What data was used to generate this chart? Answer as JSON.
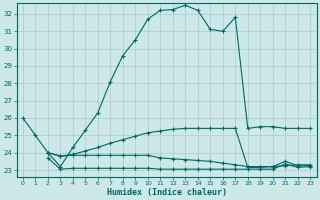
{
  "xlabel": "Humidex (Indice chaleur)",
  "bg_color": "#cce8e8",
  "grid_color": "#aacccc",
  "line_color": "#006666",
  "x_ticks": [
    0,
    1,
    2,
    3,
    4,
    5,
    6,
    7,
    8,
    9,
    10,
    11,
    12,
    13,
    14,
    15,
    16,
    17,
    18,
    19,
    20,
    21,
    22,
    23
  ],
  "y_ticks": [
    23,
    24,
    25,
    26,
    27,
    28,
    29,
    30,
    31,
    32
  ],
  "xlim": [
    -0.5,
    23.5
  ],
  "ylim": [
    22.6,
    32.6
  ],
  "line1_x": [
    0,
    1,
    2,
    3,
    4,
    5,
    6,
    7,
    8,
    9,
    10,
    11,
    12,
    13,
    14,
    15,
    16,
    17,
    18,
    19,
    20,
    21,
    22,
    23
  ],
  "line1_y": [
    26.0,
    25.0,
    24.0,
    23.2,
    24.3,
    25.3,
    26.3,
    28.1,
    29.6,
    30.5,
    31.7,
    32.2,
    32.25,
    32.5,
    32.2,
    31.1,
    31.0,
    31.8,
    25.4,
    25.5,
    25.5,
    25.4,
    25.4,
    25.4
  ],
  "line2_x": [
    2,
    3,
    4,
    5,
    6,
    7,
    8,
    9,
    10,
    11,
    12,
    13,
    14,
    15,
    16,
    17,
    18,
    19,
    20,
    21,
    22,
    23
  ],
  "line2_y": [
    24.0,
    23.8,
    23.9,
    24.1,
    24.3,
    24.55,
    24.75,
    24.95,
    25.15,
    25.25,
    25.35,
    25.4,
    25.4,
    25.4,
    25.4,
    25.4,
    23.15,
    23.15,
    23.2,
    23.25,
    23.3,
    23.3
  ],
  "line3_x": [
    2,
    3,
    4,
    5,
    6,
    7,
    8,
    9,
    10,
    11,
    12,
    13,
    14,
    15,
    16,
    17,
    18,
    19,
    20,
    21,
    22,
    23
  ],
  "line3_y": [
    24.0,
    23.8,
    23.85,
    23.85,
    23.85,
    23.85,
    23.85,
    23.85,
    23.85,
    23.7,
    23.65,
    23.6,
    23.55,
    23.5,
    23.4,
    23.3,
    23.2,
    23.2,
    23.2,
    23.5,
    23.25,
    23.25
  ],
  "line4_x": [
    2,
    3,
    4,
    5,
    6,
    7,
    8,
    9,
    10,
    11,
    12,
    13,
    14,
    15,
    16,
    17,
    18,
    19,
    20,
    21,
    22,
    23
  ],
  "line4_y": [
    23.7,
    23.05,
    23.1,
    23.1,
    23.1,
    23.1,
    23.1,
    23.1,
    23.1,
    23.05,
    23.05,
    23.05,
    23.05,
    23.05,
    23.05,
    23.05,
    23.05,
    23.05,
    23.05,
    23.35,
    23.15,
    23.2
  ]
}
